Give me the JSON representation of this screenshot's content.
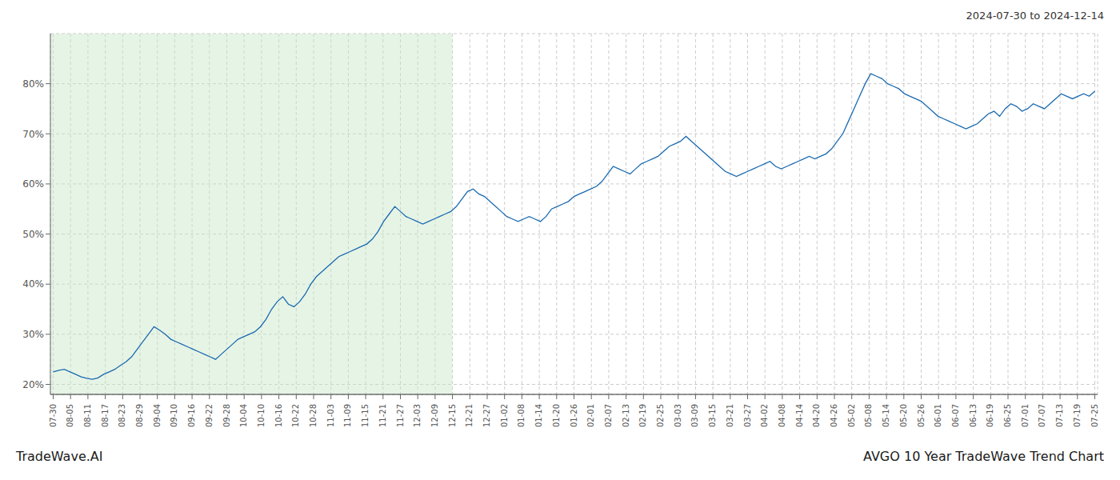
{
  "chart_data": {
    "type": "line",
    "title": "AVGO 10 Year TradeWave Trend Chart",
    "subtitle": "2024-07-30 to 2024-12-14",
    "annotations": [
      "TradeWave.AI"
    ],
    "color": "#1a6ab0",
    "grid": true,
    "xlim": [
      -0.5,
      186.5
    ],
    "xticks": [
      {
        "value": 0,
        "label": "07-30"
      },
      {
        "value": 3.1,
        "label": "08-05"
      },
      {
        "value": 6.2,
        "label": "08-11"
      },
      {
        "value": 9.3,
        "label": "08-17"
      },
      {
        "value": 12.4,
        "label": "08-23"
      },
      {
        "value": 15.5,
        "label": "08-29"
      },
      {
        "value": 18.6,
        "label": "09-04"
      },
      {
        "value": 21.7,
        "label": "09-10"
      },
      {
        "value": 24.8,
        "label": "09-16"
      },
      {
        "value": 27.9,
        "label": "09-22"
      },
      {
        "value": 31,
        "label": "09-28"
      },
      {
        "value": 34.1,
        "label": "10-04"
      },
      {
        "value": 37.2,
        "label": "10-10"
      },
      {
        "value": 40.3,
        "label": "10-16"
      },
      {
        "value": 43.4,
        "label": "10-22"
      },
      {
        "value": 46.5,
        "label": "10-28"
      },
      {
        "value": 49.6,
        "label": "11-03"
      },
      {
        "value": 52.7,
        "label": "11-09"
      },
      {
        "value": 55.8,
        "label": "11-15"
      },
      {
        "value": 58.9,
        "label": "11-21"
      },
      {
        "value": 62,
        "label": "11-27"
      },
      {
        "value": 65.1,
        "label": "12-03"
      },
      {
        "value": 68.2,
        "label": "12-09"
      },
      {
        "value": 71.3,
        "label": "12-15"
      },
      {
        "value": 74.4,
        "label": "12-21"
      },
      {
        "value": 77.5,
        "label": "12-27"
      },
      {
        "value": 80.6,
        "label": "01-02"
      },
      {
        "value": 83.7,
        "label": "01-08"
      },
      {
        "value": 86.8,
        "label": "01-14"
      },
      {
        "value": 89.9,
        "label": "01-20"
      },
      {
        "value": 93,
        "label": "01-26"
      },
      {
        "value": 96.1,
        "label": "02-01"
      },
      {
        "value": 99.2,
        "label": "02-07"
      },
      {
        "value": 102.3,
        "label": "02-13"
      },
      {
        "value": 105.4,
        "label": "02-19"
      },
      {
        "value": 108.5,
        "label": "02-25"
      },
      {
        "value": 111.6,
        "label": "03-03"
      },
      {
        "value": 114.7,
        "label": "03-09"
      },
      {
        "value": 117.8,
        "label": "03-15"
      },
      {
        "value": 120.9,
        "label": "03-21"
      },
      {
        "value": 124,
        "label": "03-27"
      },
      {
        "value": 127.1,
        "label": "04-02"
      },
      {
        "value": 130.2,
        "label": "04-08"
      },
      {
        "value": 133.3,
        "label": "04-14"
      },
      {
        "value": 136.4,
        "label": "04-20"
      },
      {
        "value": 139.5,
        "label": "04-26"
      },
      {
        "value": 142.6,
        "label": "05-02"
      },
      {
        "value": 145.7,
        "label": "05-08"
      },
      {
        "value": 148.8,
        "label": "05-14"
      },
      {
        "value": 151.9,
        "label": "05-20"
      },
      {
        "value": 155,
        "label": "05-26"
      },
      {
        "value": 158.1,
        "label": "06-01"
      },
      {
        "value": 161.2,
        "label": "06-07"
      },
      {
        "value": 164.3,
        "label": "06-13"
      },
      {
        "value": 167.4,
        "label": "06-19"
      },
      {
        "value": 170.5,
        "label": "06-25"
      },
      {
        "value": 173.6,
        "label": "07-01"
      },
      {
        "value": 176.7,
        "label": "07-07"
      },
      {
        "value": 179.8,
        "label": "07-13"
      },
      {
        "value": 182.9,
        "label": "07-19"
      },
      {
        "value": 186,
        "label": "07-25"
      }
    ],
    "ylim": [
      18,
      90
    ],
    "yticks": [
      {
        "value": 20,
        "label": "20%"
      },
      {
        "value": 30,
        "label": "30%"
      },
      {
        "value": 40,
        "label": "40%"
      },
      {
        "value": 50,
        "label": "50%"
      },
      {
        "value": 60,
        "label": "60%"
      },
      {
        "value": 70,
        "label": "70%"
      },
      {
        "value": 80,
        "label": "80%"
      }
    ],
    "span": {
      "x": [
        -0.5,
        71.3
      ],
      "color": "#c8e6c8"
    },
    "x": [
      0,
      1,
      2,
      3,
      4,
      5,
      6,
      7,
      8,
      9,
      10,
      11,
      12,
      13,
      14,
      15,
      16,
      17,
      18,
      19,
      20,
      21,
      22,
      23,
      24,
      25,
      26,
      27,
      28,
      29,
      30,
      31,
      32,
      33,
      34,
      35,
      36,
      37,
      38,
      39,
      40,
      41,
      42,
      43,
      44,
      45,
      46,
      47,
      48,
      49,
      50,
      51,
      52,
      53,
      54,
      55,
      56,
      57,
      58,
      59,
      60,
      61,
      62,
      63,
      64,
      65,
      66,
      67,
      68,
      69,
      70,
      71,
      72,
      73,
      74,
      75,
      76,
      77,
      78,
      79,
      80,
      81,
      82,
      83,
      84,
      85,
      86,
      87,
      88,
      89,
      90,
      91,
      92,
      93,
      94,
      95,
      96,
      97,
      98,
      99,
      100,
      101,
      102,
      103,
      104,
      105,
      106,
      107,
      108,
      109,
      110,
      111,
      112,
      113,
      114,
      115,
      116,
      117,
      118,
      119,
      120,
      121,
      122,
      123,
      124,
      125,
      126,
      127,
      128,
      129,
      130,
      131,
      132,
      133,
      134,
      135,
      136,
      137,
      138,
      139,
      140,
      141,
      142,
      143,
      144,
      145,
      146,
      147,
      148,
      149,
      150,
      151,
      152,
      153,
      154,
      155,
      156,
      157,
      158,
      159,
      160,
      161,
      162,
      163,
      164,
      165,
      166,
      167,
      168,
      169,
      170,
      171,
      172,
      173,
      174,
      175,
      176,
      177,
      178,
      179,
      180,
      181,
      182,
      183,
      184,
      185,
      186
    ],
    "values": [
      22.5,
      22.8,
      23.0,
      22.5,
      22.0,
      21.5,
      21.2,
      21.0,
      21.3,
      22.0,
      22.5,
      23.0,
      23.8,
      24.5,
      25.5,
      27.0,
      28.5,
      30.0,
      31.5,
      30.8,
      30.0,
      29.0,
      28.5,
      28.0,
      27.5,
      27.0,
      26.5,
      26.0,
      25.5,
      25.0,
      26.0,
      27.0,
      28.0,
      29.0,
      29.5,
      30.0,
      30.5,
      31.5,
      33.0,
      35.0,
      36.5,
      37.5,
      36.0,
      35.5,
      36.5,
      38.0,
      40.0,
      41.5,
      42.5,
      43.5,
      44.5,
      45.5,
      46.0,
      46.5,
      47.0,
      47.5,
      48.0,
      49.0,
      50.5,
      52.5,
      54.0,
      55.5,
      54.5,
      53.5,
      53.0,
      52.5,
      52.0,
      52.5,
      53.0,
      53.5,
      54.0,
      54.5,
      55.5,
      57.0,
      58.5,
      59.0,
      58.0,
      57.5,
      56.5,
      55.5,
      54.5,
      53.5,
      53.0,
      52.5,
      53.0,
      53.5,
      53.0,
      52.5,
      53.5,
      55.0,
      55.5,
      56.0,
      56.5,
      57.5,
      58.0,
      58.5,
      59.0,
      59.5,
      60.5,
      62.0,
      63.5,
      63.0,
      62.5,
      62.0,
      63.0,
      64.0,
      64.5,
      65.0,
      65.5,
      66.5,
      67.5,
      68.0,
      68.5,
      69.5,
      68.5,
      67.5,
      66.5,
      65.5,
      64.5,
      63.5,
      62.5,
      62.0,
      61.5,
      62.0,
      62.5,
      63.0,
      63.5,
      64.0,
      64.5,
      63.5,
      63.0,
      63.5,
      64.0,
      64.5,
      65.0,
      65.5,
      65.0,
      65.5,
      66.0,
      67.0,
      68.5,
      70.0,
      72.5,
      75.0,
      77.5,
      80.0,
      82.0,
      81.5,
      81.0,
      80.0,
      79.5,
      79.0,
      78.0,
      77.5,
      77.0,
      76.5,
      75.5,
      74.5,
      73.5,
      73.0,
      72.5,
      72.0,
      71.5,
      71.0,
      71.5,
      72.0,
      73.0,
      74.0,
      74.5,
      73.5,
      75.0,
      76.0,
      75.5,
      74.5,
      75.0,
      76.0,
      75.5,
      75.0,
      76.0,
      77.0,
      78.0,
      77.5,
      77.0,
      77.5,
      78.0,
      77.5,
      78.5
    ]
  }
}
